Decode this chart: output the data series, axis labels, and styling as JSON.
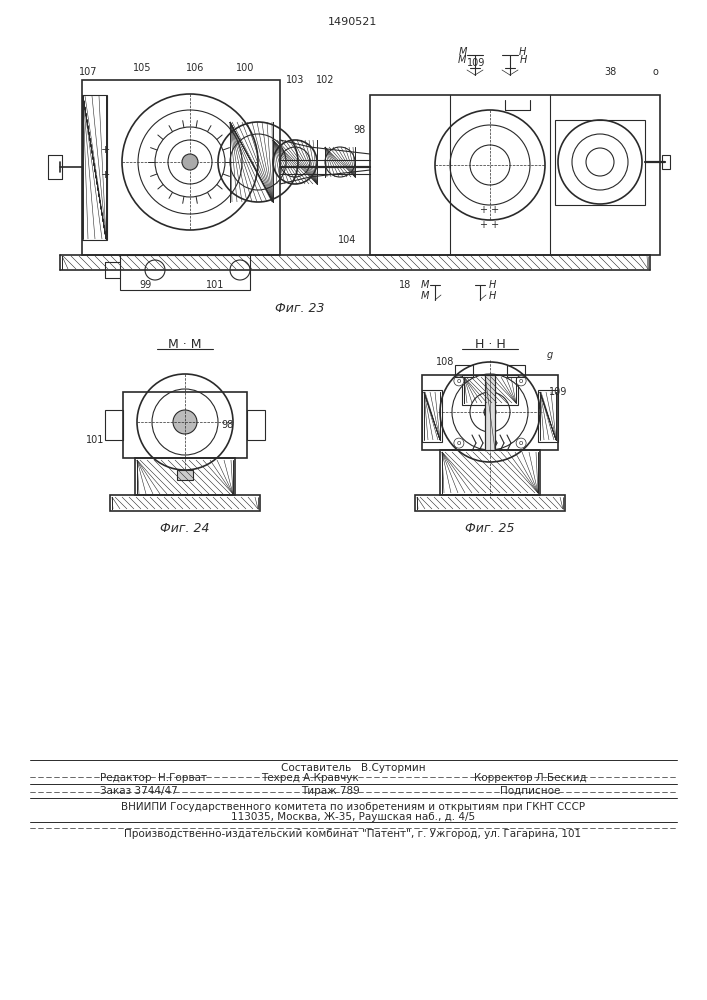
{
  "patent_number": "1490521",
  "bg_color": "#ffffff",
  "line_color": "#2a2a2a",
  "fig23_title": "Фиг. 23",
  "fig24_title": "Фиг. 24",
  "fig25_title": "Фиг. 25",
  "footer": {
    "row0_left": "Редактор  Н.Горват",
    "row0_center_top": "Составитель   В.Сутормин",
    "row0_center": "Техред А.Кравчук",
    "row0_right": "Корректор Л.Бескид",
    "row1_left": "Заказ 3744/47",
    "row1_center": "Тираж 789",
    "row1_right": "Подписное",
    "row2": "ВНИИПИ Государственного комитета по изобретениям и открытиям при ГКНТ СССР",
    "row3": "113035, Москва, Ж-35, Раушская наб., д. 4/5",
    "row4": "Производственно-издательский комбинат \"Патент\", г. Ужгород, ул. Гагарина, 101"
  }
}
